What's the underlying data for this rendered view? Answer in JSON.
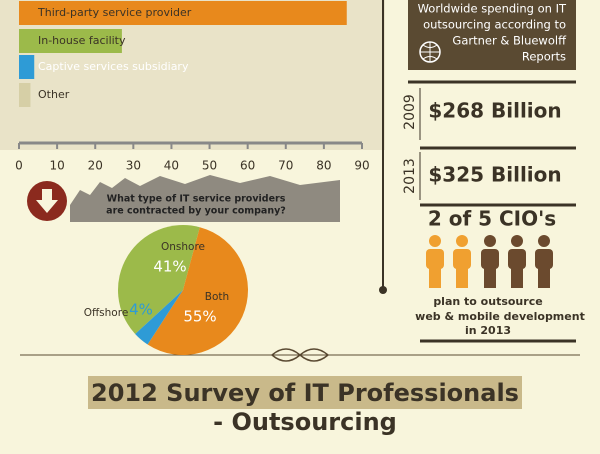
{
  "chart_data": [
    {
      "type": "bar",
      "orientation": "horizontal",
      "categories": [
        "Third-party service provider",
        "In-house facility",
        "Captive services subsidiary",
        "Other"
      ],
      "values": [
        86,
        27,
        4,
        3
      ],
      "colors": [
        "#e8891c",
        "#9cba4a",
        "#2e9bd6",
        "#d6cfa6"
      ],
      "xlim": [
        0,
        90
      ],
      "xticks": [
        0,
        10,
        20,
        30,
        40,
        50,
        60,
        70,
        80,
        90
      ]
    },
    {
      "type": "pie",
      "title": [
        "What type of IT service providers",
        "are contracted by your company?"
      ],
      "categories": [
        "Onshore",
        "Both",
        "Offshore"
      ],
      "values": [
        41,
        55,
        4
      ],
      "value_labels": [
        "41%",
        "55%",
        "4%"
      ],
      "colors": [
        "#9cba4a",
        "#e8891c",
        "#2e9bd6"
      ]
    }
  ],
  "sidebar": {
    "header": [
      "Worldwide spending on IT",
      "outsourcing according to",
      "Gartner & Bluewolff",
      "Reports"
    ],
    "spending": [
      {
        "year": "2009",
        "amount": "$268 Billion"
      },
      {
        "year": "2013",
        "amount": "$325 Billion"
      }
    ],
    "cio_stat": "2 of 5 CIO's",
    "cio_note": [
      "plan to outsource",
      "web & mobile development",
      "in 2013"
    ]
  },
  "section_title": [
    "2012 Survey of IT Professionals",
    "- Outsourcing"
  ]
}
